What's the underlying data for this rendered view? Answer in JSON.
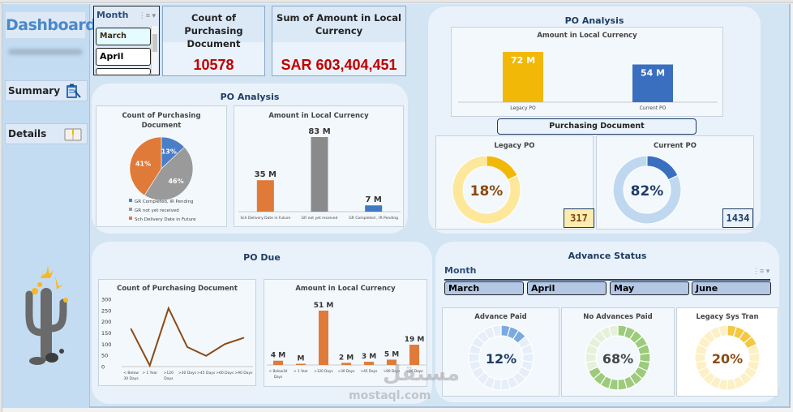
{
  "sidebar": {
    "title": "Dashboard",
    "nav": [
      {
        "label": "Summary",
        "icon": "clipboard-icon"
      },
      {
        "label": "Details",
        "icon": "open-book-icon"
      }
    ]
  },
  "month_slicer": {
    "header": "Month",
    "items": [
      "March",
      "April"
    ],
    "selected": "March"
  },
  "kpis": [
    {
      "title": "Count of Purchasing Document",
      "value": "10578"
    },
    {
      "title": "Sum of Amount in Local Currency",
      "value": "SAR 603,404,451"
    }
  ],
  "po_analysis_left": {
    "title": "PO Analysis",
    "pie": {
      "title": "Count of Purchasing Document",
      "legend": [
        "GR Completed, IR Pending",
        "GR not yet received",
        "Sch Delivery Date in Future"
      ],
      "labels": [
        "13%",
        "46%",
        "41%"
      ]
    },
    "bar": {
      "title": "Amount in Local Currency",
      "labels": [
        "35 M",
        "83 M",
        "7 M"
      ],
      "categories": [
        "Sch Delivery Date in Future",
        "GR not yet received",
        "GR Completed , IR Pending"
      ]
    }
  },
  "po_analysis_right": {
    "title": "PO Analysis",
    "bar": {
      "title": "Amount in Local Currency",
      "labels": [
        "72 M",
        "54 M"
      ],
      "categories": [
        "Legacy PO",
        "Current PO"
      ]
    },
    "purchasing_document_label": "Purchasing Document",
    "donuts": [
      {
        "title": "Legacy PO",
        "label": "18%",
        "count": "317"
      },
      {
        "title": "Current PO",
        "label": "82%",
        "count": "1434"
      }
    ]
  },
  "po_due": {
    "title": "PO Due",
    "line": {
      "title": "Count of Purchasing Document",
      "yticks": [
        "300",
        "250",
        "200",
        "150",
        "100",
        "50",
        "0"
      ],
      "categories": [
        "< Below 30 Days",
        "> 1 Year",
        ">120 Days",
        ">30 Days",
        ">45 Days",
        ">60 Days",
        ">90 Days"
      ]
    },
    "bar": {
      "title": "Amount in Local Currency",
      "labels": [
        "4 M",
        "M",
        "51 M",
        "2 M",
        "3 M",
        "5 M",
        "19 M"
      ],
      "categories": [
        "< Below 30 Days",
        "> 1 Year",
        ">120 Days",
        ">30 Days",
        ">45 Days",
        ">60 Days",
        ">90 Days"
      ]
    }
  },
  "advance_status": {
    "title": "Advance Status",
    "slicer_header": "Month",
    "months": [
      "March",
      "April",
      "May",
      "June"
    ],
    "rings": [
      {
        "title": "Advance Paid",
        "label": "12%"
      },
      {
        "title": "No Advances Paid",
        "label": "68%"
      },
      {
        "title": "Legacy Sys Tran",
        "label": "20%"
      }
    ]
  },
  "watermark": {
    "arabic": "مستقل",
    "latin": "mostaql.com"
  },
  "chart_data": [
    {
      "type": "pie",
      "title": "Count of Purchasing Document",
      "categories": [
        "GR Completed, IR Pending",
        "GR not yet received",
        "Sch Delivery Date in Future"
      ],
      "values": [
        13,
        46,
        41
      ],
      "colors": [
        "#4a7fc8",
        "#9a9a9a",
        "#e07a38"
      ],
      "legend": "bottom"
    },
    {
      "type": "bar",
      "title": "Amount in Local Currency",
      "categories": [
        "Sch Delivery Date in Future",
        "GR not yet received",
        "GR Completed , IR Pending"
      ],
      "values": [
        35,
        83,
        7
      ],
      "unit": "M",
      "colors": [
        "#e07a38",
        "#8a8a8a",
        "#3f79c6"
      ]
    },
    {
      "type": "bar",
      "title": "Amount in Local Currency",
      "categories": [
        "Legacy PO",
        "Current PO"
      ],
      "values": [
        72,
        54
      ],
      "unit": "M",
      "colors": [
        "#f2b807",
        "#3a6fbf"
      ]
    },
    {
      "type": "pie",
      "title": "Legacy PO",
      "values": [
        18,
        82
      ],
      "center_label": "18%",
      "count": 317
    },
    {
      "type": "pie",
      "title": "Current PO",
      "values": [
        18,
        82
      ],
      "center_label": "82%",
      "count": 1434
    },
    {
      "type": "line",
      "title": "Count of Purchasing Document",
      "categories": [
        "< Below 30 Days",
        "> 1 Year",
        ">120 Days",
        ">30 Days",
        ">45 Days",
        ">60 Days",
        ">90 Days"
      ],
      "values": [
        168,
        5,
        260,
        87,
        48,
        100,
        128
      ],
      "ylim": [
        0,
        300
      ],
      "color": "#8b4a14"
    },
    {
      "type": "bar",
      "title": "Amount in Local Currency",
      "categories": [
        "< Below 30 Days",
        "> 1 Year",
        ">120 Days",
        ">30 Days",
        ">45 Days",
        ">60 Days",
        ">90 Days"
      ],
      "values": [
        4,
        0.5,
        51,
        2,
        3,
        5,
        19
      ],
      "unit": "M",
      "color": "#e07a38"
    },
    {
      "type": "pie",
      "title": "Advance Paid",
      "values": [
        12,
        88
      ],
      "center_label": "12%",
      "color": "#7aaadf"
    },
    {
      "type": "pie",
      "title": "No Advances Paid",
      "values": [
        68,
        32
      ],
      "center_label": "68%",
      "color": "#9ccb7c"
    },
    {
      "type": "pie",
      "title": "Legacy Sys Tran",
      "values": [
        20,
        80
      ],
      "center_label": "20%",
      "color": "#f5c842"
    }
  ]
}
